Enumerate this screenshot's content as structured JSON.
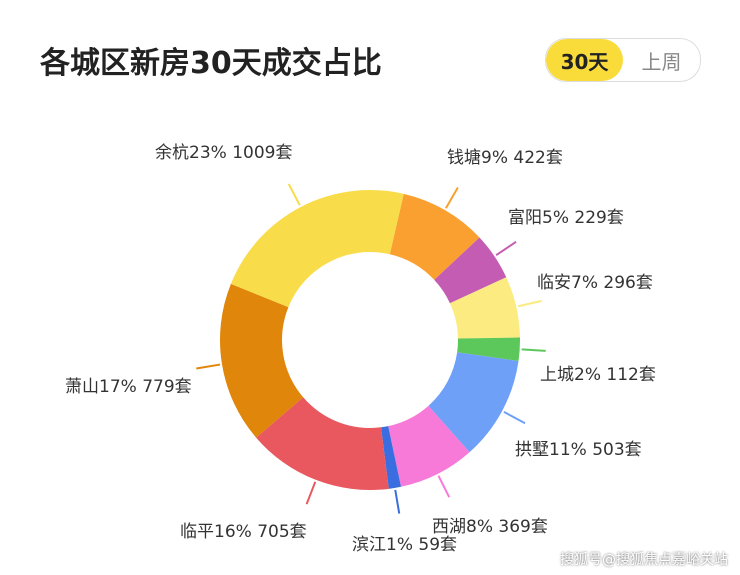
{
  "header": {
    "title": "各城区新房30天成交占比",
    "buttons": [
      "30天",
      "上周"
    ]
  },
  "chart_data": {
    "type": "donut",
    "values": [
      422,
      229,
      296,
      112,
      503,
      369,
      59,
      705,
      779,
      1009
    ],
    "value_labels": [
      "钱塘9% 422套",
      "富阳5% 229套",
      "临安7% 296套",
      "上城2% 112套",
      "拱墅11% 503套",
      "西湖8% 369套",
      "滨江1% 59套",
      "临平16% 705套",
      "萧山17% 779套",
      "余杭23% 1009套"
    ],
    "colors": [
      "#f9a030",
      "#c45cb4",
      "#fbeb80",
      "#5cc85c",
      "#6ea0f8",
      "#f87ad8",
      "#3a6ee0",
      "#e8585e",
      "#e0860a",
      "#f9dc4a"
    ]
  },
  "footer": "搜狐号@搜狐焦点嘉峪关站"
}
